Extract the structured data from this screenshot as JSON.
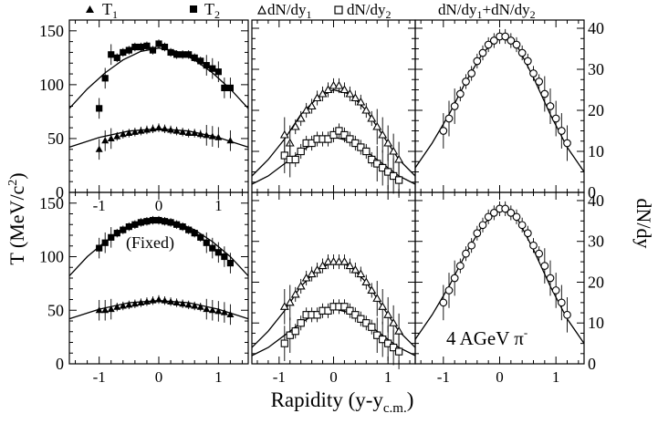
{
  "figure": {
    "xlabel_main": "Rapidity (y-y",
    "xlabel_sub": "c.m.",
    "xlabel_close": ")",
    "ylabel_left_main": "T (MeV/c",
    "ylabel_left_sup": "2",
    "ylabel_left_close": ")",
    "ylabel_right": "dN/dy",
    "annotation_fixed": "(Fixed)",
    "annotation_beam_main": "4 AGeV π",
    "annotation_beam_sup": "-",
    "legend_T1": "T",
    "legend_T1_sub": "1",
    "legend_T2": "T",
    "legend_T2_sub": "2",
    "legend_dN1": "dN/dy",
    "legend_dN1_sub": "1",
    "legend_dN2": "dN/dy",
    "legend_dN2_sub": "2",
    "legend_sum_a": "dN/dy",
    "legend_sum_a_sub": "1",
    "legend_sum_b": "+dN/dy",
    "legend_sum_b_sub": "2"
  },
  "chart_data": [
    {
      "type": "scatter",
      "panel": "top-left",
      "xlim": [
        -1.5,
        1.5
      ],
      "ylim": [
        0,
        160
      ],
      "xticks": [
        "-1",
        "0",
        "1"
      ],
      "yticks": [
        "0",
        "50",
        "100",
        "150"
      ],
      "series": [
        {
          "legend": "T2",
          "marker": "square",
          "x": [
            -1.0,
            -0.9,
            -0.8,
            -0.7,
            -0.6,
            -0.5,
            -0.4,
            -0.3,
            -0.2,
            -0.1,
            0.0,
            0.1,
            0.2,
            0.3,
            0.4,
            0.5,
            0.6,
            0.7,
            0.8,
            0.9,
            1.0,
            1.1,
            1.2
          ],
          "y": [
            78,
            106,
            128,
            125,
            130,
            132,
            135,
            135,
            136,
            132,
            138,
            135,
            130,
            128,
            128,
            128,
            125,
            122,
            118,
            115,
            112,
            97,
            97
          ]
        },
        {
          "legend": "T1",
          "marker": "triangle",
          "x": [
            -1.0,
            -0.9,
            -0.8,
            -0.7,
            -0.6,
            -0.5,
            -0.4,
            -0.3,
            -0.2,
            -0.1,
            0.0,
            0.1,
            0.2,
            0.3,
            0.4,
            0.5,
            0.6,
            0.7,
            0.8,
            0.9,
            1.0,
            1.2
          ],
          "y": [
            40,
            48,
            50,
            52,
            54,
            55,
            56,
            57,
            58,
            59,
            60,
            59,
            58,
            57,
            56,
            55,
            55,
            54,
            53,
            52,
            51,
            48
          ]
        }
      ],
      "fits": [
        {
          "x": [
            -1.5,
            -1.2,
            -0.9,
            -0.6,
            -0.3,
            0.0,
            0.3,
            0.6,
            0.9,
            1.2,
            1.5
          ],
          "y": [
            78,
            96,
            111,
            123,
            131,
            134,
            131,
            123,
            111,
            96,
            78
          ]
        },
        {
          "x": [
            -1.5,
            -1.0,
            -0.5,
            0.0,
            0.5,
            1.0,
            1.5
          ],
          "y": [
            42,
            51,
            57,
            59,
            57,
            51,
            42
          ]
        }
      ]
    },
    {
      "type": "scatter",
      "panel": "top-middle",
      "xlim": [
        -1.5,
        1.5
      ],
      "ylim": [
        0,
        42
      ],
      "xticks": [],
      "series": [
        {
          "legend": "dN1",
          "marker": "open-triangle",
          "x": [
            -0.9,
            -0.8,
            -0.7,
            -0.6,
            -0.5,
            -0.4,
            -0.3,
            -0.2,
            -0.1,
            0.0,
            0.1,
            0.2,
            0.3,
            0.4,
            0.5,
            0.6,
            0.7,
            0.8,
            0.9,
            1.0,
            1.1,
            1.2
          ],
          "y": [
            14,
            12,
            16,
            18,
            20,
            21,
            23,
            24,
            25,
            26,
            26,
            25,
            24,
            23,
            22,
            20,
            18,
            16,
            14,
            12,
            10,
            8
          ]
        },
        {
          "legend": "dN2",
          "marker": "open-square",
          "x": [
            -0.9,
            -0.8,
            -0.7,
            -0.6,
            -0.5,
            -0.4,
            -0.3,
            -0.2,
            -0.1,
            0.0,
            0.1,
            0.2,
            0.3,
            0.4,
            0.5,
            0.6,
            0.7,
            0.8,
            0.9,
            1.0,
            1.1,
            1.2
          ],
          "y": [
            9,
            8,
            8,
            10,
            12,
            12,
            13,
            13,
            13,
            14,
            15,
            14,
            13,
            12,
            11,
            10,
            8,
            7,
            6,
            5,
            4,
            3
          ]
        }
      ],
      "fits": [
        {
          "x": [
            -1.5,
            -1.2,
            -0.9,
            -0.6,
            -0.3,
            0.0,
            0.3,
            0.6,
            0.9,
            1.2,
            1.5
          ],
          "y": [
            4,
            8,
            13,
            19,
            23,
            25,
            24,
            20,
            14,
            8,
            4
          ]
        },
        {
          "x": [
            -1.5,
            -1.2,
            -0.9,
            -0.6,
            -0.3,
            0.0,
            0.3,
            0.6,
            0.9,
            1.2,
            1.5
          ],
          "y": [
            2,
            4,
            7,
            10,
            12.5,
            13.5,
            12.5,
            10,
            7,
            4,
            2
          ]
        }
      ]
    },
    {
      "type": "scatter",
      "panel": "top-right",
      "xlim": [
        -1.5,
        1.5
      ],
      "ylim": [
        0,
        42
      ],
      "xticks": [],
      "yticks_right": [
        "0",
        "10",
        "20",
        "30",
        "40"
      ],
      "series": [
        {
          "legend": "sum",
          "marker": "open-circle",
          "x": [
            -1.0,
            -0.9,
            -0.8,
            -0.7,
            -0.6,
            -0.5,
            -0.4,
            -0.3,
            -0.2,
            -0.1,
            0.0,
            0.1,
            0.2,
            0.3,
            0.4,
            0.5,
            0.6,
            0.7,
            0.8,
            0.9,
            1.0,
            1.1,
            1.2
          ],
          "y": [
            15,
            18,
            21,
            24,
            27,
            29,
            32,
            34,
            36,
            37,
            38,
            38,
            37,
            36,
            34,
            32,
            29,
            27,
            24,
            21,
            18,
            15,
            12
          ]
        }
      ],
      "fits": [
        {
          "x": [
            -1.5,
            -1.2,
            -0.9,
            -0.6,
            -0.3,
            0.0,
            0.3,
            0.6,
            0.9,
            1.2,
            1.5
          ],
          "y": [
            6,
            12,
            19,
            27,
            34,
            38,
            36,
            28,
            19,
            11,
            5
          ]
        }
      ]
    },
    {
      "type": "scatter",
      "panel": "bottom-left",
      "xlim": [
        -1.5,
        1.5
      ],
      "ylim": [
        0,
        160
      ],
      "xticks": [
        "-1",
        "0",
        "1"
      ],
      "yticks": [
        "0",
        "50",
        "100",
        "150"
      ],
      "series": [
        {
          "legend": "T2",
          "marker": "square",
          "x": [
            -1.0,
            -0.9,
            -0.8,
            -0.7,
            -0.6,
            -0.5,
            -0.4,
            -0.3,
            -0.2,
            -0.1,
            0.0,
            0.1,
            0.2,
            0.3,
            0.4,
            0.5,
            0.6,
            0.7,
            0.8,
            0.9,
            1.0,
            1.1,
            1.2
          ],
          "y": [
            108,
            113,
            118,
            122,
            125,
            128,
            130,
            132,
            133,
            134,
            134,
            133,
            132,
            130,
            128,
            125,
            122,
            118,
            113,
            108,
            104,
            100,
            94
          ]
        },
        {
          "legend": "T1",
          "marker": "triangle",
          "x": [
            -1.0,
            -0.9,
            -0.8,
            -0.7,
            -0.6,
            -0.5,
            -0.4,
            -0.3,
            -0.2,
            -0.1,
            0.0,
            0.1,
            0.2,
            0.3,
            0.4,
            0.5,
            0.6,
            0.7,
            0.8,
            0.9,
            1.0,
            1.1,
            1.2
          ],
          "y": [
            50,
            50,
            51,
            53,
            54,
            55,
            56,
            57,
            58,
            59,
            60,
            59,
            58,
            57,
            56,
            55,
            54,
            53,
            51,
            50,
            49,
            48,
            46
          ]
        }
      ],
      "fits": [
        {
          "x": [
            -1.5,
            -1.2,
            -0.9,
            -0.6,
            -0.3,
            0.0,
            0.3,
            0.6,
            0.9,
            1.2,
            1.5
          ],
          "y": [
            82,
            100,
            114,
            125,
            132,
            134,
            132,
            125,
            114,
            100,
            82
          ]
        },
        {
          "x": [
            -1.5,
            -1.0,
            -0.5,
            0.0,
            0.5,
            1.0,
            1.5
          ],
          "y": [
            42,
            51,
            57,
            59,
            57,
            51,
            42
          ]
        }
      ]
    },
    {
      "type": "scatter",
      "panel": "bottom-middle",
      "xlim": [
        -1.5,
        1.5
      ],
      "ylim": [
        0,
        42
      ],
      "xticks": [
        "-1",
        "0",
        "1"
      ],
      "series": [
        {
          "legend": "dN1",
          "marker": "open-triangle",
          "x": [
            -0.9,
            -0.8,
            -0.7,
            -0.6,
            -0.5,
            -0.4,
            -0.3,
            -0.2,
            -0.1,
            0.0,
            0.1,
            0.2,
            0.3,
            0.4,
            0.5,
            0.6,
            0.7,
            0.8,
            0.9,
            1.0,
            1.1,
            1.2
          ],
          "y": [
            14,
            15,
            17,
            19,
            21,
            22,
            23,
            24,
            25,
            25,
            25,
            25,
            24,
            23,
            22,
            20,
            18,
            16,
            14,
            12,
            10,
            8
          ]
        },
        {
          "legend": "dN2",
          "marker": "open-square",
          "x": [
            -0.9,
            -0.8,
            -0.7,
            -0.6,
            -0.5,
            -0.4,
            -0.3,
            -0.2,
            -0.1,
            0.0,
            0.1,
            0.2,
            0.3,
            0.4,
            0.5,
            0.6,
            0.7,
            0.8,
            0.9,
            1.0,
            1.1,
            1.2
          ],
          "y": [
            5,
            7,
            8,
            10,
            12,
            12,
            12,
            13,
            13,
            14,
            14,
            14,
            13,
            12,
            11,
            10,
            9,
            7,
            6,
            5,
            4,
            3
          ]
        }
      ],
      "fits": [
        {
          "x": [
            -1.5,
            -1.2,
            -0.9,
            -0.6,
            -0.3,
            0.0,
            0.3,
            0.6,
            0.9,
            1.2,
            1.5
          ],
          "y": [
            4,
            8,
            13,
            19,
            23,
            25,
            24,
            20,
            14,
            8,
            4
          ]
        },
        {
          "x": [
            -1.5,
            -1.2,
            -0.9,
            -0.6,
            -0.3,
            0.0,
            0.3,
            0.6,
            0.9,
            1.2,
            1.5
          ],
          "y": [
            2,
            4,
            7,
            10,
            12.5,
            13.5,
            12.5,
            10,
            7,
            4,
            2
          ]
        }
      ]
    },
    {
      "type": "scatter",
      "panel": "bottom-right",
      "xlim": [
        -1.5,
        1.5
      ],
      "ylim": [
        0,
        42
      ],
      "xticks": [
        "-1",
        "0",
        "1"
      ],
      "yticks_right": [
        "0",
        "10",
        "20",
        "30",
        "40"
      ],
      "series": [
        {
          "legend": "sum",
          "marker": "open-circle",
          "x": [
            -1.0,
            -0.9,
            -0.8,
            -0.7,
            -0.6,
            -0.5,
            -0.4,
            -0.3,
            -0.2,
            -0.1,
            0.0,
            0.1,
            0.2,
            0.3,
            0.4,
            0.5,
            0.6,
            0.7,
            0.8,
            0.9,
            1.0,
            1.1,
            1.2
          ],
          "y": [
            15,
            18,
            21,
            24,
            27,
            29,
            32,
            34,
            36,
            37,
            38,
            38,
            37,
            36,
            34,
            32,
            29,
            27,
            24,
            21,
            18,
            15,
            12
          ]
        }
      ],
      "fits": [
        {
          "x": [
            -1.5,
            -1.2,
            -0.9,
            -0.6,
            -0.3,
            0.0,
            0.3,
            0.6,
            0.9,
            1.2,
            1.5
          ],
          "y": [
            6,
            12,
            19,
            27,
            34,
            38,
            36,
            28,
            19,
            11,
            5
          ]
        }
      ]
    }
  ]
}
